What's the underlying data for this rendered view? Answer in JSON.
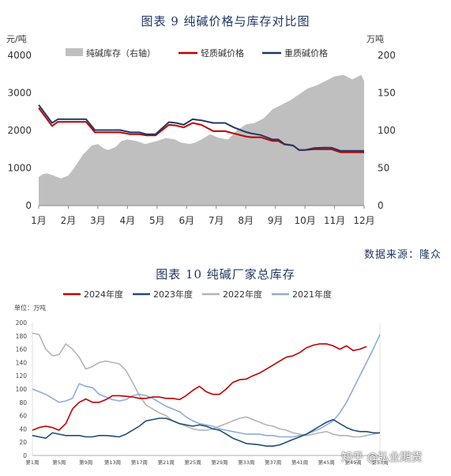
{
  "chart1_title": "图表 9  纯碱价格与库存对比图",
  "chart2_title": "图表 10  纯碱厂家总库存",
  "source_note": "数据来源：隆众",
  "watermark": "知乎 @弘业期货",
  "chart_data": [
    {
      "type": "line",
      "title": "图表 9  纯碱价格与库存对比图",
      "y_unit_left": "元/吨",
      "y_unit_right": "万吨",
      "ylim_left": [
        0,
        4000
      ],
      "ylim_right": [
        0,
        200
      ],
      "ytick_left": [
        "0",
        "1000",
        "2000",
        "3000",
        "4000"
      ],
      "ytick_right": [
        "0",
        "50",
        "100",
        "150",
        "200"
      ],
      "categories": [
        "1月",
        "2月",
        "3月",
        "4月",
        "5月",
        "6月",
        "7月",
        "8月",
        "9月",
        "10月",
        "11月",
        "12月"
      ],
      "legend_position": "top",
      "series": [
        {
          "name": "纯碱库存（右轴）",
          "type": "area",
          "axis": "right",
          "color": "#bfbfbf",
          "x": [
            0,
            0.15,
            0.3,
            0.5,
            0.75,
            1,
            1.2,
            1.5,
            1.8,
            2.0,
            2.2,
            2.35,
            2.6,
            2.8,
            3.0,
            3.3,
            3.6,
            3.8,
            4.0,
            4.3,
            4.6,
            4.8,
            5.1,
            5.3,
            5.5,
            5.8,
            6.1,
            6.4,
            6.7,
            7.0,
            7.3,
            7.6,
            7.9,
            8.2,
            8.5,
            8.8,
            9.1,
            9.4,
            9.7,
            10.0,
            10.3,
            10.6,
            10.9,
            11.0
          ],
          "y": [
            38,
            42,
            43,
            40,
            36,
            40,
            50,
            68,
            80,
            82,
            76,
            74,
            78,
            86,
            88,
            86,
            82,
            84,
            86,
            90,
            88,
            84,
            82,
            84,
            88,
            95,
            90,
            88,
            100,
            108,
            110,
            116,
            128,
            134,
            140,
            148,
            156,
            160,
            166,
            172,
            174,
            168,
            174,
            166
          ]
        },
        {
          "name": "轻质碱价格",
          "type": "line",
          "axis": "left",
          "color": "#c00000",
          "x": [
            0,
            0.45,
            0.65,
            1.1,
            1.6,
            1.9,
            2.4,
            2.75,
            3.1,
            3.4,
            3.65,
            3.95,
            4.4,
            4.65,
            4.9,
            5.2,
            5.5,
            5.9,
            6.3,
            6.6,
            7.0,
            7.2,
            7.5,
            7.9,
            8.1,
            8.3,
            8.6,
            8.8,
            9.0,
            9.3,
            9.6,
            9.9,
            10.2,
            10.4,
            10.7,
            11.0
          ],
          "y": [
            2600,
            2120,
            2230,
            2230,
            2230,
            1950,
            1950,
            1950,
            1900,
            1900,
            1870,
            1870,
            2150,
            2130,
            2080,
            2200,
            2150,
            1980,
            1980,
            1920,
            1840,
            1820,
            1820,
            1720,
            1720,
            1630,
            1600,
            1480,
            1480,
            1500,
            1500,
            1500,
            1420,
            1420,
            1420,
            1420
          ]
        },
        {
          "name": "重质碱价格",
          "type": "line",
          "axis": "left",
          "color": "#1f3864",
          "x": [
            0,
            0.45,
            0.65,
            1.1,
            1.6,
            1.9,
            2.4,
            2.75,
            3.1,
            3.4,
            3.65,
            3.95,
            4.4,
            4.65,
            4.9,
            5.2,
            5.5,
            5.9,
            6.3,
            6.6,
            7.0,
            7.2,
            7.5,
            7.9,
            8.1,
            8.3,
            8.6,
            8.8,
            9.0,
            9.3,
            9.6,
            9.9,
            10.2,
            10.4,
            10.7,
            11.0
          ],
          "y": [
            2680,
            2200,
            2300,
            2300,
            2300,
            2010,
            2010,
            2010,
            1950,
            1950,
            1900,
            1900,
            2220,
            2200,
            2150,
            2300,
            2270,
            2200,
            2200,
            2080,
            1960,
            1920,
            1880,
            1760,
            1760,
            1640,
            1600,
            1480,
            1480,
            1530,
            1540,
            1540,
            1460,
            1460,
            1460,
            1460
          ]
        }
      ]
    },
    {
      "type": "line",
      "title": "图表 10  纯碱厂家总库存",
      "unit_label": "单位：万吨",
      "ylim": [
        0,
        200
      ],
      "yticks": [
        "0",
        "20",
        "40",
        "60",
        "80",
        "100",
        "120",
        "140",
        "160",
        "180",
        "200"
      ],
      "xticks": [
        "第1周",
        "第5周",
        "第9周",
        "第13周",
        "第17周",
        "第21周",
        "第25周",
        "第29周",
        "第33周",
        "第37周",
        "第41周",
        "第45周",
        "第49周",
        "第53周"
      ],
      "legend_position": "top",
      "series": [
        {
          "name": "2024年度",
          "color": "#c00000",
          "x": [
            1,
            2,
            3,
            4,
            5,
            6,
            7,
            8,
            9,
            10,
            11,
            12,
            13,
            14,
            15,
            16,
            17,
            18,
            19,
            20,
            21,
            22,
            23,
            24,
            25,
            26,
            27,
            28,
            29,
            30,
            31,
            32,
            33,
            34,
            35,
            36,
            37,
            38,
            39,
            40,
            41,
            42,
            43,
            44,
            45,
            46,
            47,
            48,
            49,
            50,
            51
          ],
          "y": [
            38,
            42,
            44,
            42,
            38,
            48,
            70,
            80,
            85,
            80,
            80,
            84,
            90,
            90,
            89,
            88,
            86,
            86,
            88,
            88,
            86,
            86,
            84,
            90,
            98,
            104,
            96,
            92,
            92,
            100,
            110,
            114,
            115,
            120,
            124,
            130,
            136,
            142,
            148,
            150,
            155,
            162,
            166,
            168,
            168,
            165,
            160,
            165,
            158,
            160,
            164
          ]
        },
        {
          "name": "2023年度",
          "color": "#1f4e79",
          "x": [
            1,
            2,
            3,
            4,
            5,
            6,
            7,
            8,
            9,
            10,
            11,
            12,
            13,
            14,
            15,
            16,
            17,
            18,
            19,
            20,
            21,
            22,
            23,
            24,
            25,
            26,
            27,
            28,
            29,
            30,
            31,
            32,
            33,
            34,
            35,
            36,
            37,
            38,
            39,
            40,
            41,
            42,
            43,
            44,
            45,
            46,
            47,
            48,
            49,
            50,
            51,
            52,
            53
          ],
          "y": [
            30,
            28,
            26,
            34,
            32,
            30,
            30,
            30,
            28,
            28,
            30,
            30,
            29,
            28,
            32,
            38,
            44,
            52,
            54,
            56,
            56,
            52,
            48,
            46,
            44,
            46,
            44,
            40,
            38,
            32,
            26,
            22,
            18,
            17,
            16,
            14,
            14,
            16,
            20,
            24,
            28,
            32,
            38,
            44,
            50,
            54,
            48,
            42,
            38,
            36,
            36,
            34,
            34
          ]
        },
        {
          "name": "2022年度",
          "color": "#b4b4b4",
          "x": [
            1,
            2,
            3,
            4,
            5,
            6,
            7,
            8,
            9,
            10,
            11,
            12,
            13,
            14,
            15,
            16,
            17,
            18,
            19,
            20,
            21,
            22,
            23,
            24,
            25,
            26,
            27,
            28,
            29,
            30,
            31,
            32,
            33,
            34,
            35,
            36,
            37,
            38,
            39,
            40,
            41,
            42,
            43,
            44,
            45,
            46,
            47,
            48,
            49,
            50,
            51,
            52,
            53
          ],
          "y": [
            184,
            182,
            160,
            150,
            152,
            168,
            160,
            148,
            130,
            134,
            140,
            142,
            140,
            138,
            128,
            110,
            90,
            76,
            70,
            64,
            60,
            52,
            48,
            44,
            40,
            38,
            38,
            40,
            44,
            48,
            52,
            56,
            58,
            54,
            50,
            46,
            44,
            40,
            38,
            34,
            32,
            30,
            32,
            34,
            36,
            32,
            30,
            30,
            28,
            28,
            30,
            32,
            34
          ]
        },
        {
          "name": "2021年度",
          "color": "#8faadc",
          "x": [
            1,
            2,
            3,
            4,
            5,
            6,
            7,
            8,
            9,
            10,
            11,
            12,
            13,
            14,
            15,
            16,
            17,
            18,
            19,
            20,
            21,
            22,
            23,
            24,
            25,
            26,
            27,
            28,
            29,
            30,
            31,
            32,
            33,
            34,
            35,
            36,
            37,
            38,
            39,
            40,
            41,
            42,
            43,
            44,
            45,
            46,
            47,
            48,
            49,
            50,
            51,
            52,
            53
          ],
          "y": [
            100,
            96,
            92,
            86,
            80,
            82,
            86,
            108,
            104,
            102,
            92,
            88,
            84,
            82,
            84,
            90,
            92,
            90,
            86,
            80,
            74,
            70,
            66,
            58,
            52,
            48,
            46,
            44,
            40,
            38,
            36,
            34,
            32,
            32,
            32,
            30,
            30,
            28,
            28,
            28,
            30,
            32,
            36,
            40,
            46,
            52,
            64,
            80,
            100,
            120,
            140,
            160,
            182
          ]
        }
      ]
    }
  ]
}
